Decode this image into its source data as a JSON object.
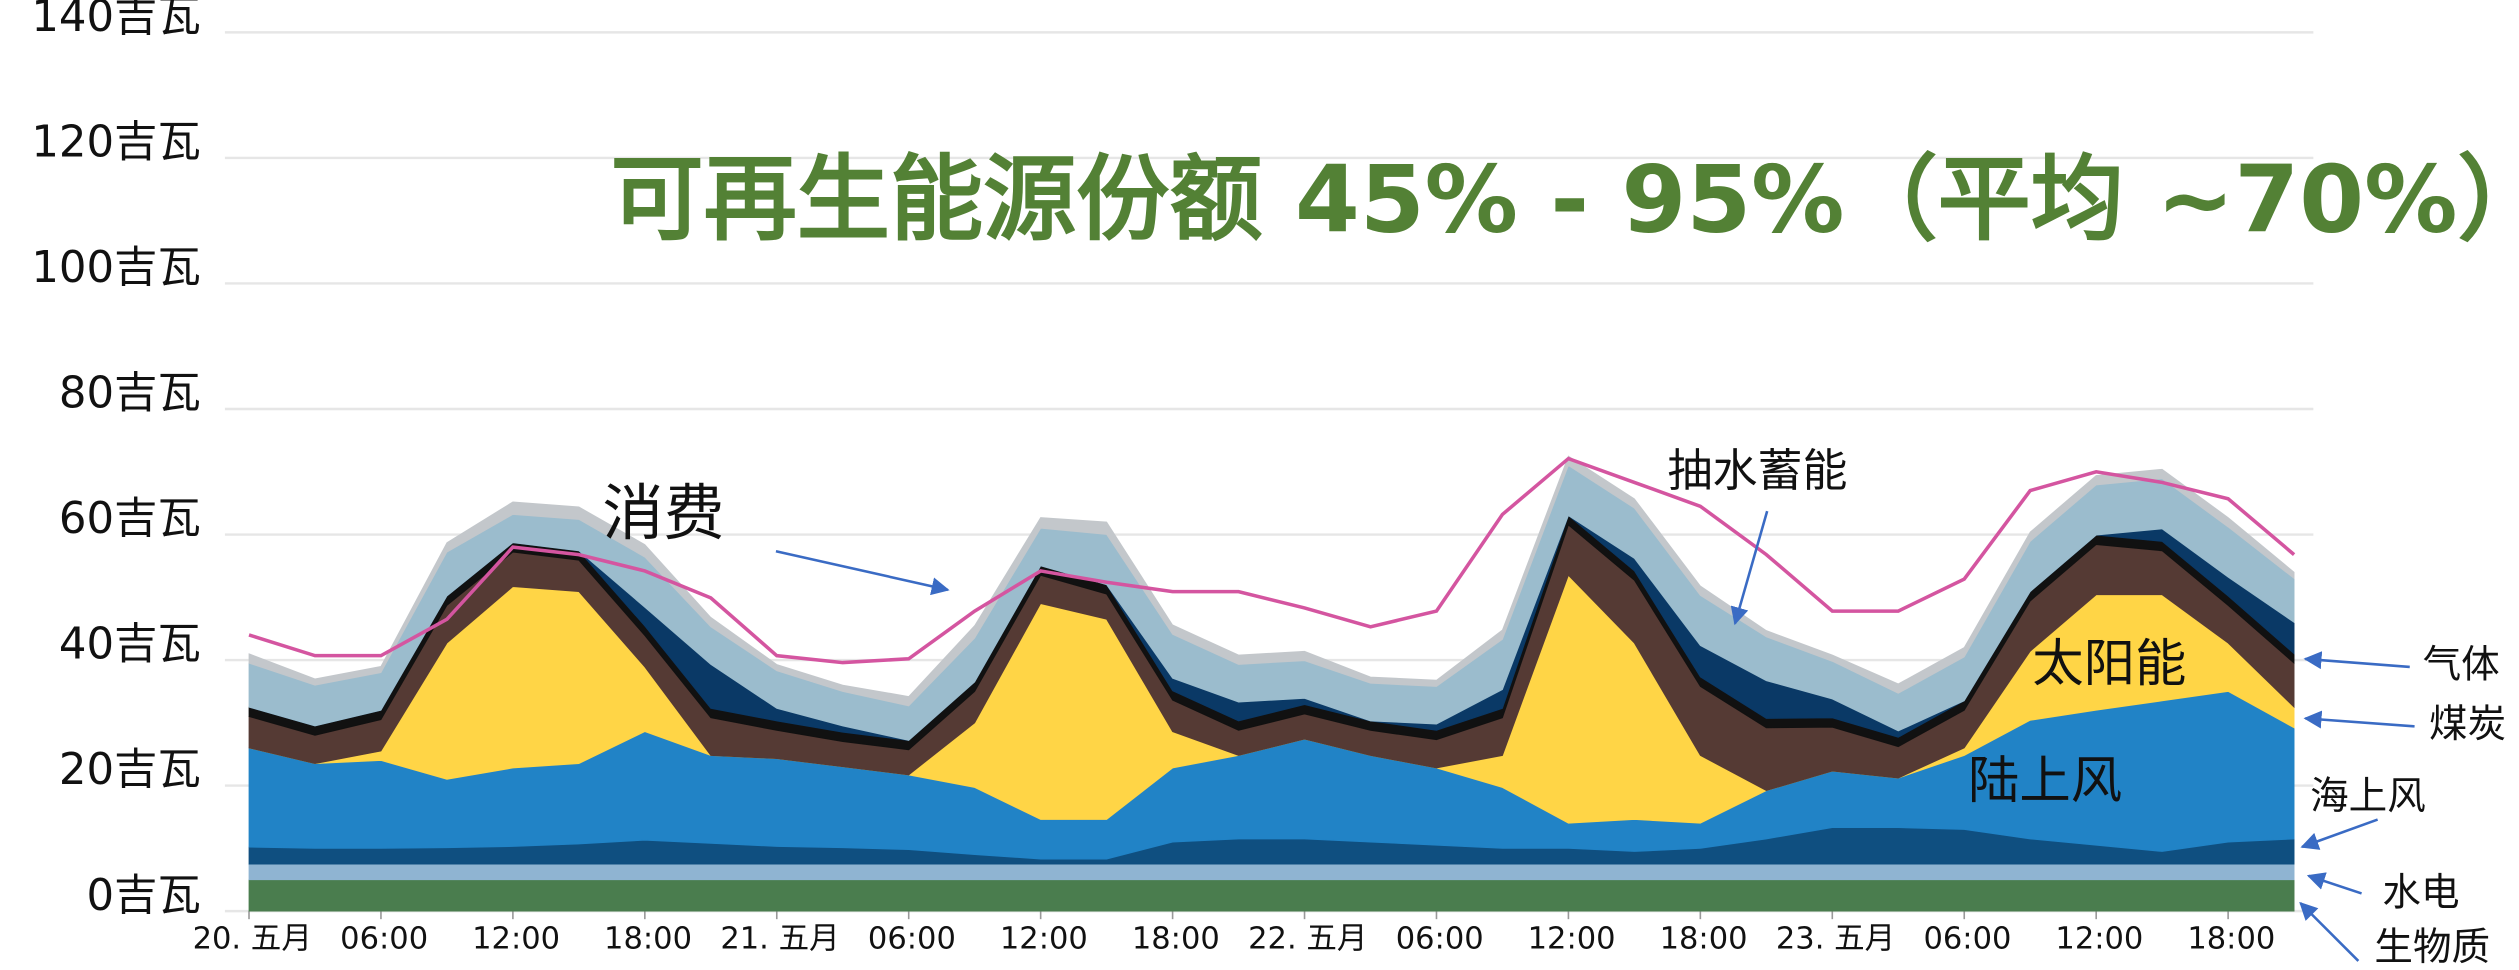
{
  "chart_data": {
    "type": "area",
    "stacked": true,
    "title": "可再生能源份额 45% - 95%（平均 ~70%）",
    "x": [
      0,
      3,
      6,
      9,
      12,
      15,
      18,
      21,
      24,
      27,
      30,
      33,
      36,
      39,
      42,
      45,
      48,
      51,
      54,
      57,
      60,
      63,
      66,
      69,
      72,
      75,
      78,
      81,
      84,
      87,
      90,
      93
    ],
    "xlim": [
      0,
      93
    ],
    "xticks": [
      {
        "value": 0,
        "label": "20. 五月"
      },
      {
        "value": 6,
        "label": "06:00"
      },
      {
        "value": 12,
        "label": "12:00"
      },
      {
        "value": 18,
        "label": "18:00"
      },
      {
        "value": 24,
        "label": "21. 五月"
      },
      {
        "value": 30,
        "label": "06:00"
      },
      {
        "value": 36,
        "label": "12:00"
      },
      {
        "value": 42,
        "label": "18:00"
      },
      {
        "value": 48,
        "label": "22. 五月"
      },
      {
        "value": 54,
        "label": "06:00"
      },
      {
        "value": 60,
        "label": "12:00"
      },
      {
        "value": 66,
        "label": "18:00"
      },
      {
        "value": 72,
        "label": "23. 五月"
      },
      {
        "value": 78,
        "label": "06:00"
      },
      {
        "value": 84,
        "label": "12:00"
      },
      {
        "value": 90,
        "label": "18:00"
      }
    ],
    "ylim": [
      0,
      140
    ],
    "yticks": [
      {
        "value": 0,
        "label": "0吉瓦"
      },
      {
        "value": 20,
        "label": "20吉瓦"
      },
      {
        "value": 40,
        "label": "40吉瓦"
      },
      {
        "value": 60,
        "label": "60吉瓦"
      },
      {
        "value": 80,
        "label": "80吉瓦"
      },
      {
        "value": 100,
        "label": "100吉瓦"
      },
      {
        "value": 120,
        "label": "120吉瓦"
      },
      {
        "value": 140,
        "label": "140吉瓦"
      }
    ],
    "grid": true,
    "series": [
      {
        "name": "生物质",
        "color": "#4a7d4e",
        "values": [
          5,
          5,
          5,
          5,
          5,
          5,
          5,
          5,
          5,
          5,
          5,
          5,
          5,
          5,
          5,
          5,
          5,
          5,
          5,
          5,
          5,
          5,
          5,
          5,
          5,
          5,
          5,
          5,
          5,
          5,
          5,
          5
        ]
      },
      {
        "name": "水电",
        "color": "#8fb4d2",
        "values": [
          2.5,
          2.5,
          2.5,
          2.5,
          2.5,
          2.5,
          2.5,
          2.5,
          2.5,
          2.5,
          2.5,
          2.5,
          2.5,
          2.5,
          2.5,
          2.5,
          2.5,
          2.5,
          2.5,
          2.5,
          2.5,
          2.5,
          2.5,
          2.5,
          2.5,
          2.5,
          2.5,
          2.5,
          2.5,
          2.5,
          2.5,
          2.5
        ]
      },
      {
        "name": "海上风",
        "color": "#0f4f80",
        "values": [
          2.7,
          2.5,
          2.5,
          2.6,
          2.8,
          3.2,
          3.8,
          3.3,
          2.8,
          2.6,
          2.3,
          1.5,
          0.8,
          0.8,
          3.5,
          4,
          4,
          3.5,
          3,
          2.5,
          2.5,
          2,
          2.5,
          4,
          5.8,
          5.8,
          5.5,
          4,
          3,
          2,
          3.5,
          4
        ]
      },
      {
        "name": "陆上风",
        "color": "#2183c6",
        "values": [
          15.8,
          13.5,
          14,
          10.9,
          12.5,
          12.8,
          17.3,
          14,
          14,
          12.9,
          11.9,
          10.7,
          6.3,
          6.3,
          11.8,
          13.3,
          15.9,
          13.8,
          12.3,
          9.7,
          4,
          5.1,
          4,
          7.7,
          9,
          7.9,
          11.8,
          18.9,
          21.5,
          24,
          24,
          17.7
        ]
      },
      {
        "name": "太阳能",
        "color": "#ffd546",
        "values": [
          0,
          0,
          1.5,
          21.7,
          28.9,
          27.4,
          10.3,
          0,
          0,
          0,
          0,
          10.3,
          34.4,
          31.9,
          5.8,
          0,
          0,
          0,
          0,
          5.1,
          39.5,
          28.1,
          10.8,
          0,
          0,
          0,
          1.2,
          11,
          18.4,
          16.9,
          7.7,
          3.3
        ]
      },
      {
        "name": "煤炭",
        "color": "#553a34",
        "values": [
          5,
          4.5,
          5,
          6,
          5.5,
          5,
          5,
          6,
          4.5,
          4,
          4,
          5,
          4.5,
          4,
          5,
          4,
          4,
          4,
          4.5,
          6,
          8,
          10,
          11,
          10,
          7,
          5,
          6,
          8,
          8,
          7,
          6,
          7
        ]
      },
      {
        "color": "#111111",
        "values": [
          1.5,
          1.5,
          1.5,
          1.5,
          1.5,
          1.5,
          1.5,
          1.5,
          1.5,
          1.5,
          1.5,
          1.5,
          1.5,
          1.5,
          1.5,
          1.5,
          1.5,
          1.5,
          1.5,
          1.5,
          1.5,
          1.5,
          1.5,
          1.5,
          1.5,
          1.5,
          1.5,
          1.5,
          1.5,
          1.5,
          1.5,
          1.5
        ]
      },
      {
        "name": "抽水蓄能",
        "color": "#0a3966",
        "values": [
          0,
          0,
          0,
          0,
          0,
          0,
          3,
          7,
          2,
          1,
          0,
          0,
          0,
          0,
          2,
          3,
          1,
          0,
          1,
          3,
          0,
          2,
          5,
          6,
          3,
          1,
          0,
          0,
          0,
          2,
          3,
          5
        ]
      },
      {
        "name": "气体",
        "color": "#9bbccd",
        "values": [
          7,
          6.5,
          6,
          7,
          4.5,
          5,
          8,
          6,
          6,
          5.5,
          5.5,
          7,
          6,
          8,
          7,
          6,
          6,
          6,
          6,
          8,
          8,
          8,
          8,
          7,
          6,
          6,
          7,
          8,
          8,
          8,
          8,
          7
        ]
      },
      {
        "color": "#c3c7cb",
        "values": [
          1.5,
          1,
          1,
          1.5,
          2,
          2,
          2,
          1.5,
          1,
          1,
          1.5,
          2,
          1.7,
          2,
          1.5,
          1.5,
          1.5,
          1,
          1,
          1.5,
          1.5,
          1.5,
          1.5,
          1,
          1,
          1.5,
          1.5,
          1.5,
          1.5,
          1.5,
          1.5,
          1
        ]
      },
      {
        "name": "消费",
        "color": "#d455a0",
        "mark": "line",
        "values": [
          44,
          40.7,
          40.7,
          46.5,
          58,
          56.8,
          54.2,
          49.9,
          40.7,
          39.6,
          40.2,
          47.8,
          54.2,
          52.4,
          50.9,
          50.9,
          48.3,
          45.3,
          47.8,
          63.2,
          72.1,
          68.3,
          64.5,
          56.8,
          47.8,
          47.8,
          52.9,
          67,
          70,
          68.3,
          65.7,
          56.8
        ]
      }
    ]
  }
}
